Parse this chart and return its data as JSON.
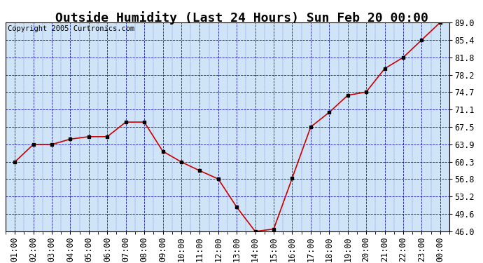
{
  "title": "Outside Humidity (Last 24 Hours) Sun Feb 20 00:00",
  "copyright": "Copyright 2005 Curtronics.com",
  "x_labels": [
    "01:00",
    "02:00",
    "03:00",
    "04:00",
    "05:00",
    "06:00",
    "07:00",
    "08:00",
    "09:00",
    "10:00",
    "11:00",
    "12:00",
    "13:00",
    "14:00",
    "15:00",
    "16:00",
    "17:00",
    "18:00",
    "19:00",
    "20:00",
    "21:00",
    "22:00",
    "23:00",
    "00:00"
  ],
  "x_values": [
    1,
    2,
    3,
    4,
    5,
    6,
    7,
    8,
    9,
    10,
    11,
    12,
    13,
    14,
    15,
    16,
    17,
    18,
    19,
    20,
    21,
    22,
    23,
    24
  ],
  "y_values": [
    60.3,
    63.9,
    63.9,
    65.0,
    65.5,
    65.5,
    68.5,
    68.5,
    62.5,
    60.3,
    58.5,
    56.8,
    51.0,
    46.0,
    46.5,
    57.0,
    67.5,
    70.5,
    74.0,
    74.7,
    79.5,
    81.8,
    85.4,
    89.0
  ],
  "y_ticks": [
    46.0,
    49.6,
    53.2,
    56.8,
    60.3,
    63.9,
    67.5,
    71.1,
    74.7,
    78.2,
    81.8,
    85.4,
    89.0
  ],
  "ylim": [
    46.0,
    89.0
  ],
  "line_color": "#cc0000",
  "marker_color": "#000000",
  "bg_color": "#d0e4f7",
  "grid_color": "#0000bb",
  "title_fontsize": 13,
  "copyright_fontsize": 7.5,
  "tick_fontsize": 8.5
}
